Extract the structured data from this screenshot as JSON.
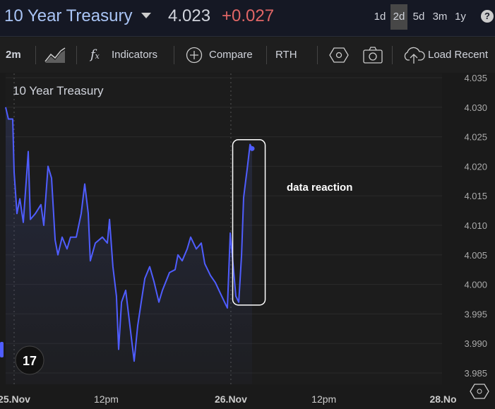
{
  "header": {
    "title": "10 Year Treasury",
    "price": "4.023",
    "change": "+0.027",
    "ranges": [
      "1d",
      "2d",
      "5d",
      "3m",
      "1y"
    ],
    "active_range": "2d",
    "help": "?"
  },
  "toolbar": {
    "interval": "2m",
    "indicators": "Indicators",
    "compare": "Compare",
    "rth": "RTH",
    "load_recent": "Load Recent"
  },
  "colors": {
    "line": "#4f5dff",
    "change": "#e06666",
    "title": "#a9c4f5"
  },
  "chart_data": {
    "type": "line",
    "title": "10 Year Treasury",
    "xlabel": "",
    "ylabel": "",
    "x_unit": "hours from 25.Nov",
    "ylim": [
      3.985,
      4.035
    ],
    "yticks": [
      "4.035",
      "4.030",
      "4.025",
      "4.020",
      "4.015",
      "4.010",
      "4.005",
      "4.000",
      "3.995",
      "3.990",
      "3.985"
    ],
    "xticks": [
      {
        "label": "25.Nov",
        "x": 0
      },
      {
        "label": "12pm",
        "x": 10.2
      },
      {
        "label": "26.Nov",
        "x": 24
      },
      {
        "label": "12pm",
        "x": 34.3
      },
      {
        "label": "28.No",
        "x": 47.5
      }
    ],
    "grid": true,
    "series": [
      {
        "name": "10 Year Treasury",
        "x": [
          -0.94,
          -0.63,
          -0.16,
          0,
          0.31,
          0.63,
          1.02,
          1.41,
          1.56,
          1.8,
          2.35,
          2.97,
          3.28,
          3.75,
          4.14,
          4.54,
          4.85,
          5.32,
          5.86,
          6.25,
          6.88,
          7.43,
          7.82,
          8.21,
          8.44,
          8.99,
          9.77,
          10.32,
          10.56,
          10.94,
          11.33,
          11.57,
          11.89,
          12.35,
          12.67,
          12.9,
          13.29,
          13.68,
          14.07,
          14.47,
          15.01,
          15.48,
          16.03,
          16.42,
          17.2,
          17.83,
          18.14,
          18.61,
          19.16,
          19.55,
          20.17,
          20.72,
          21.11,
          21.74,
          22.28,
          22.83,
          23.3,
          23.61,
          23.93,
          24.24,
          24.55,
          24.87,
          25.18,
          25.41,
          25.65,
          25.8,
          26.12,
          26.35
        ],
        "y": [
          4.03,
          4.028,
          4.028,
          4.019,
          4.012,
          4.0145,
          4.0105,
          4.019,
          4.0225,
          4.011,
          4.012,
          4.0135,
          4.01,
          4.02,
          4.018,
          4.0075,
          4.005,
          4.008,
          4.006,
          4.008,
          4.008,
          4.012,
          4.017,
          4.012,
          4.004,
          4.007,
          4.008,
          4.007,
          4.011,
          4.003,
          3.998,
          3.989,
          3.997,
          3.999,
          3.995,
          3.992,
          3.987,
          3.993,
          3.997,
          4.001,
          4.003,
          4.0005,
          3.997,
          3.999,
          4.002,
          4.0025,
          4.005,
          4.004,
          4.006,
          4.008,
          4.006,
          4.007,
          4.0035,
          4.0015,
          4.0003,
          3.9985,
          3.997,
          3.996,
          4.0087,
          4.0035,
          3.998,
          3.997,
          4.005,
          4.0147,
          4.0177,
          4.0195,
          4.0237,
          4.023
        ]
      }
    ],
    "annotations": [
      {
        "text": "data reaction",
        "x_range": [
          24.2,
          27.8
        ],
        "y_range": [
          3.9965,
          4.0245
        ]
      }
    ]
  }
}
